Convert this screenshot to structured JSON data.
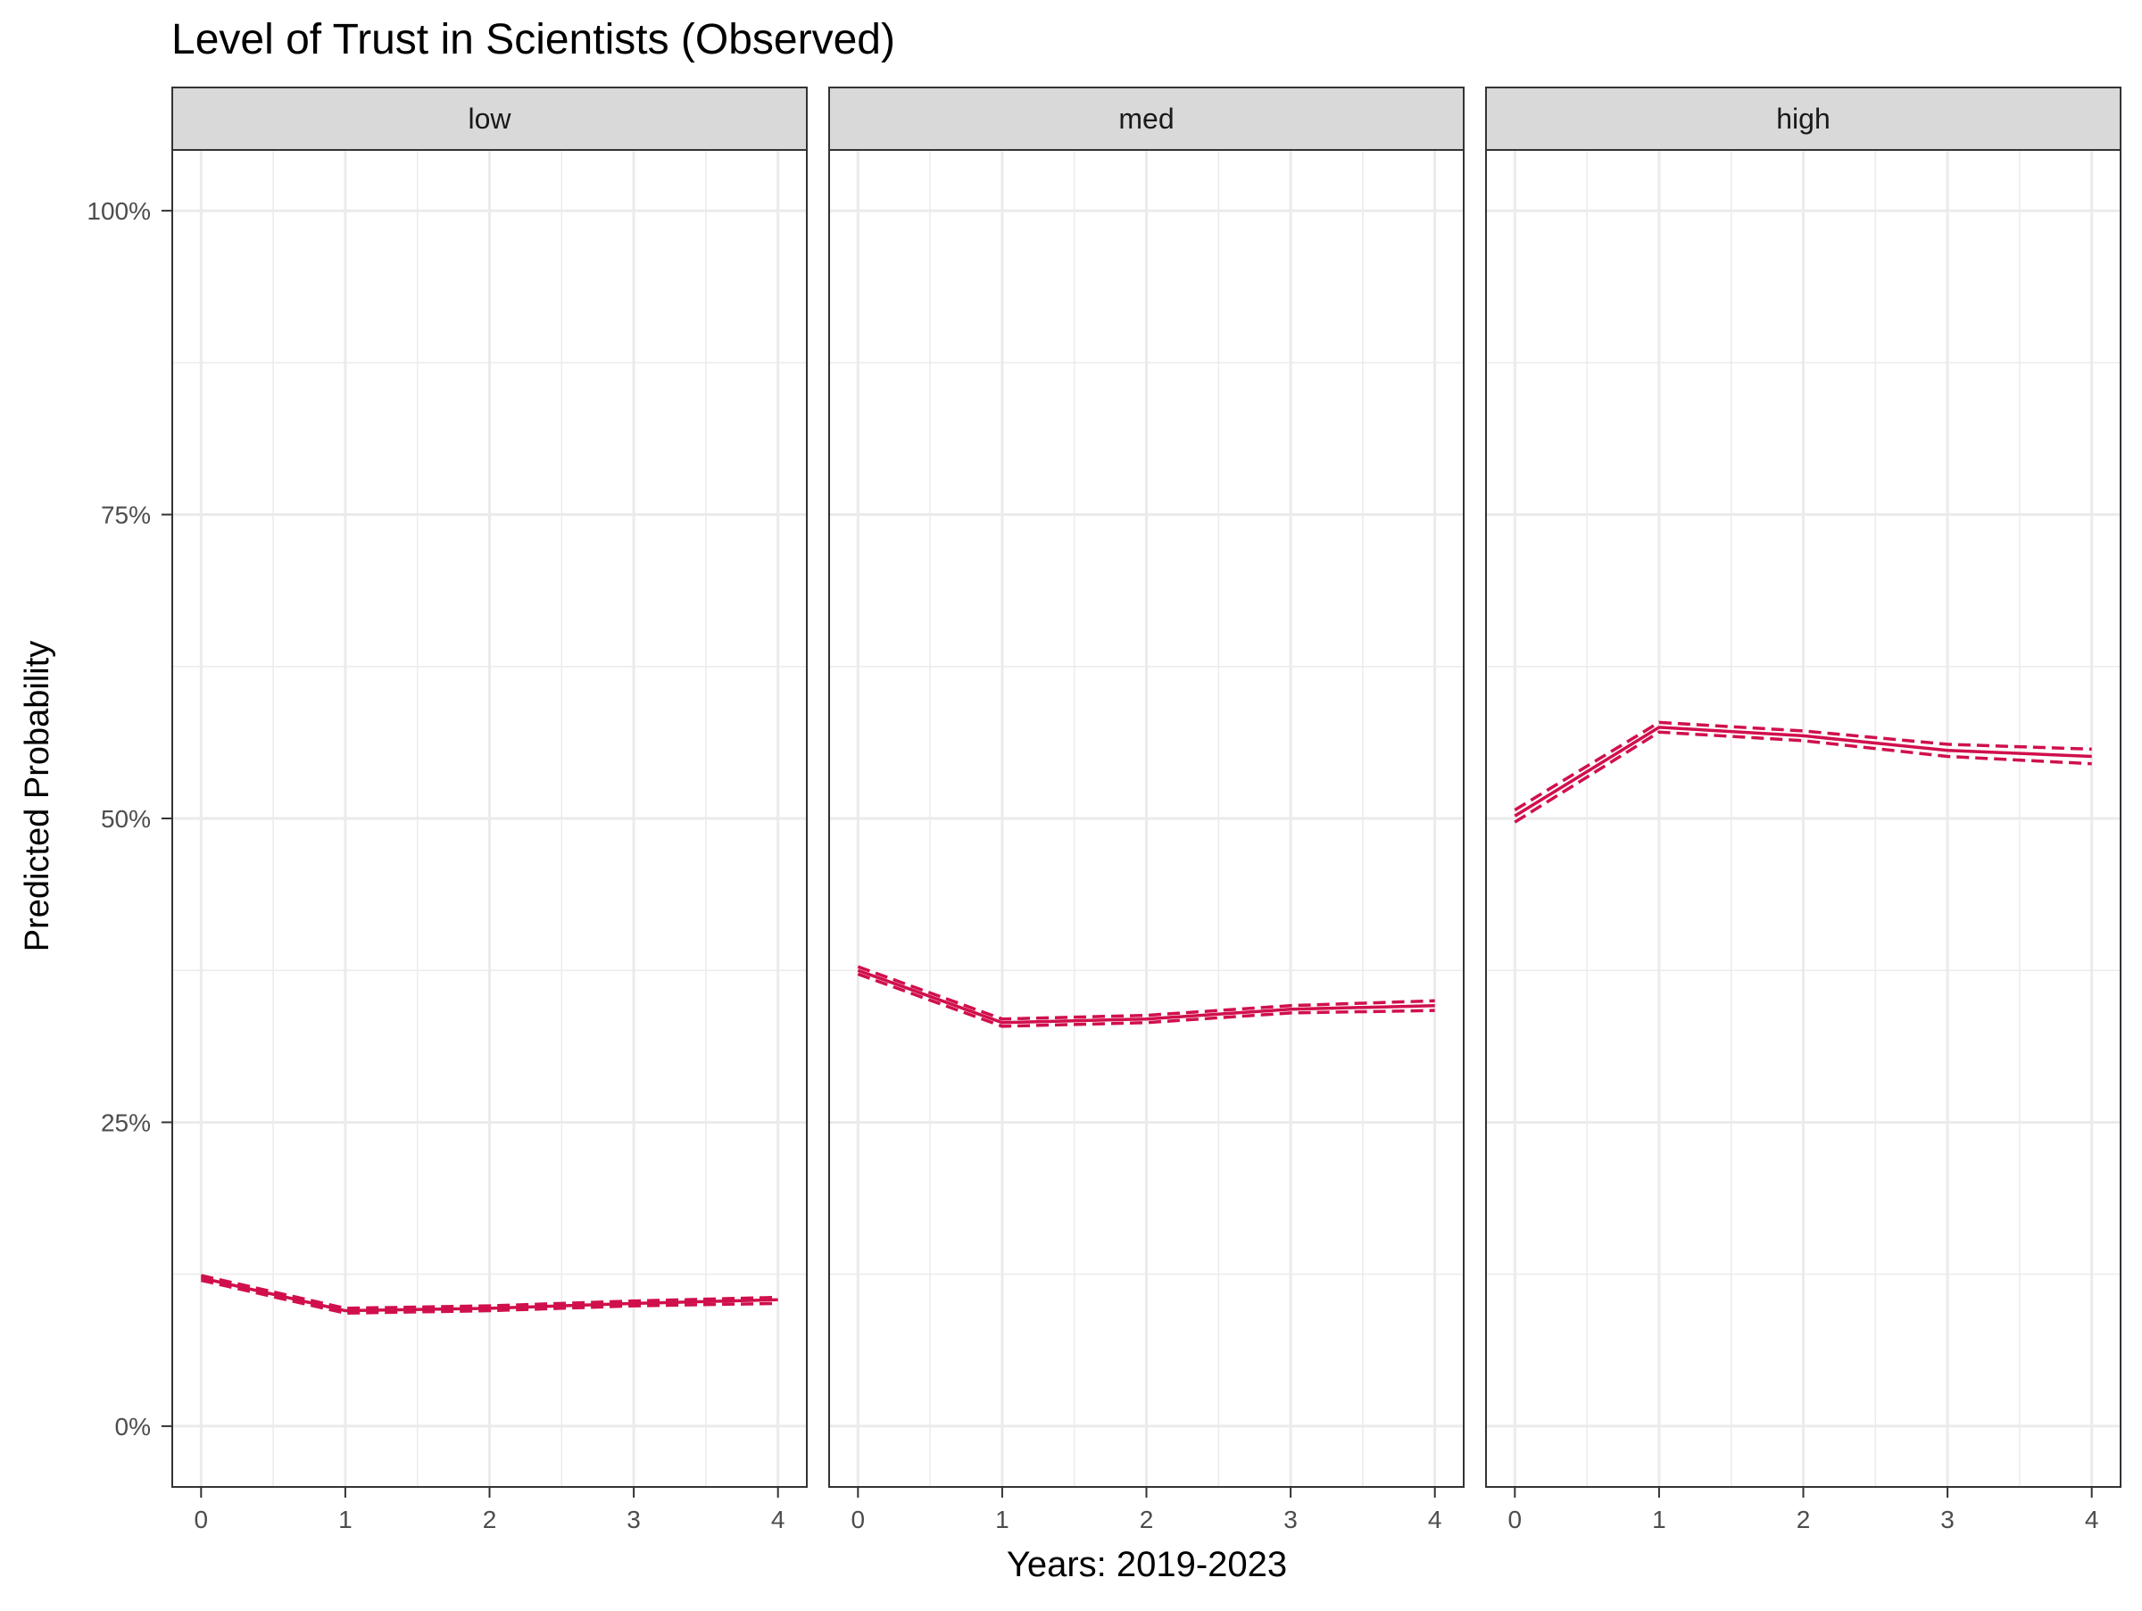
{
  "chart_data": {
    "type": "line",
    "title": "Level of Trust in Scientists (Observed)",
    "xlabel": "Years: 2019-2023",
    "ylabel": "Predicted Probability",
    "ylim": [
      -0.05,
      1.05
    ],
    "xlim": [
      -0.2,
      4.2
    ],
    "x": [
      0,
      1,
      2,
      3,
      4
    ],
    "x_ticks": [
      0,
      1,
      2,
      3,
      4
    ],
    "x_tick_labels": [
      "0",
      "1",
      "2",
      "3",
      "4"
    ],
    "y_ticks": [
      0,
      0.25,
      0.5,
      0.75,
      1.0
    ],
    "y_tick_labels": [
      "0%",
      "25%",
      "50%",
      "75%",
      "100%"
    ],
    "grid": true,
    "line_color": "#D0104C",
    "panels": [
      {
        "label": "low",
        "values": [
          0.122,
          0.095,
          0.097,
          0.101,
          0.104
        ],
        "lower": [
          0.12,
          0.093,
          0.095,
          0.099,
          0.101
        ],
        "upper": [
          0.124,
          0.097,
          0.099,
          0.103,
          0.106
        ]
      },
      {
        "label": "med",
        "values": [
          0.375,
          0.332,
          0.335,
          0.343,
          0.346
        ],
        "lower": [
          0.372,
          0.329,
          0.332,
          0.34,
          0.342
        ],
        "upper": [
          0.378,
          0.335,
          0.338,
          0.346,
          0.35
        ]
      },
      {
        "label": "high",
        "values": [
          0.502,
          0.575,
          0.568,
          0.556,
          0.551
        ],
        "lower": [
          0.497,
          0.571,
          0.564,
          0.551,
          0.545
        ],
        "upper": [
          0.507,
          0.579,
          0.572,
          0.561,
          0.557
        ]
      }
    ]
  }
}
